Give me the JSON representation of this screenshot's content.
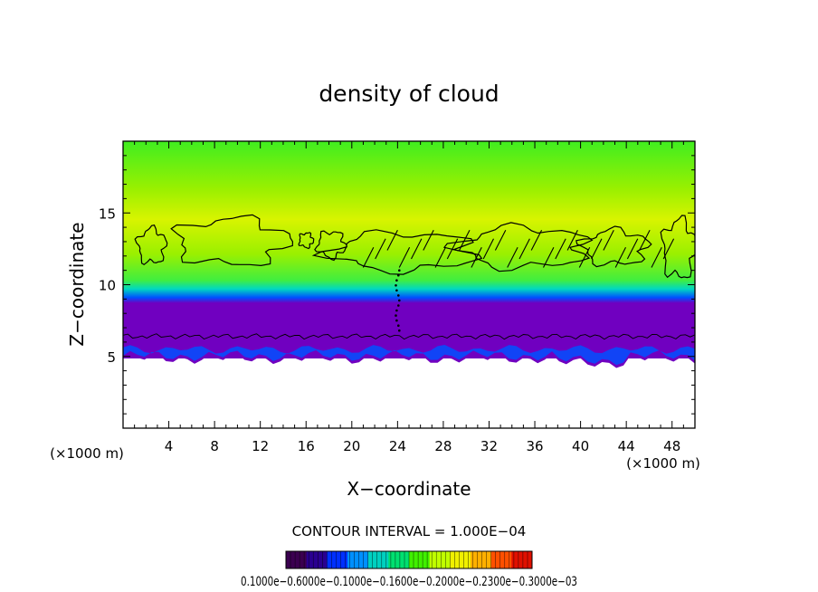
{
  "chart_data": {
    "type": "heatmap",
    "title": "density of cloud",
    "xlabel": "X−coordinate",
    "ylabel": "Z−coordinate",
    "x_unit_left": "(×1000 m)",
    "x_unit_right": "(×1000 m)",
    "xlim": [
      0,
      50
    ],
    "ylim": [
      0,
      20
    ],
    "xticks": [
      4,
      8,
      12,
      16,
      20,
      24,
      28,
      32,
      36,
      40,
      44,
      48
    ],
    "yticks": [
      5,
      10,
      15
    ],
    "contour_interval_text": "CONTOUR INTERVAL = 1.000E−04",
    "colorbar_labels": "0.1000e−0.6000e−0.1000e−0.1600e−0.2000e−0.2300e−0.3000e−03",
    "colorbar_colors": [
      "#3b0050",
      "#2a0090",
      "#0030ff",
      "#0090ff",
      "#00d0c0",
      "#00e070",
      "#40f000",
      "#c0ff00",
      "#f0f000",
      "#ffb000",
      "#ff5000",
      "#e01000"
    ],
    "field_colors": {
      "top": "#40ee20",
      "upper": "#9af000",
      "band": "#d8f400",
      "lower": "#40ee40",
      "cyan": "#00d8c0",
      "blue": "#0050ff",
      "base": "#7000c0"
    }
  }
}
